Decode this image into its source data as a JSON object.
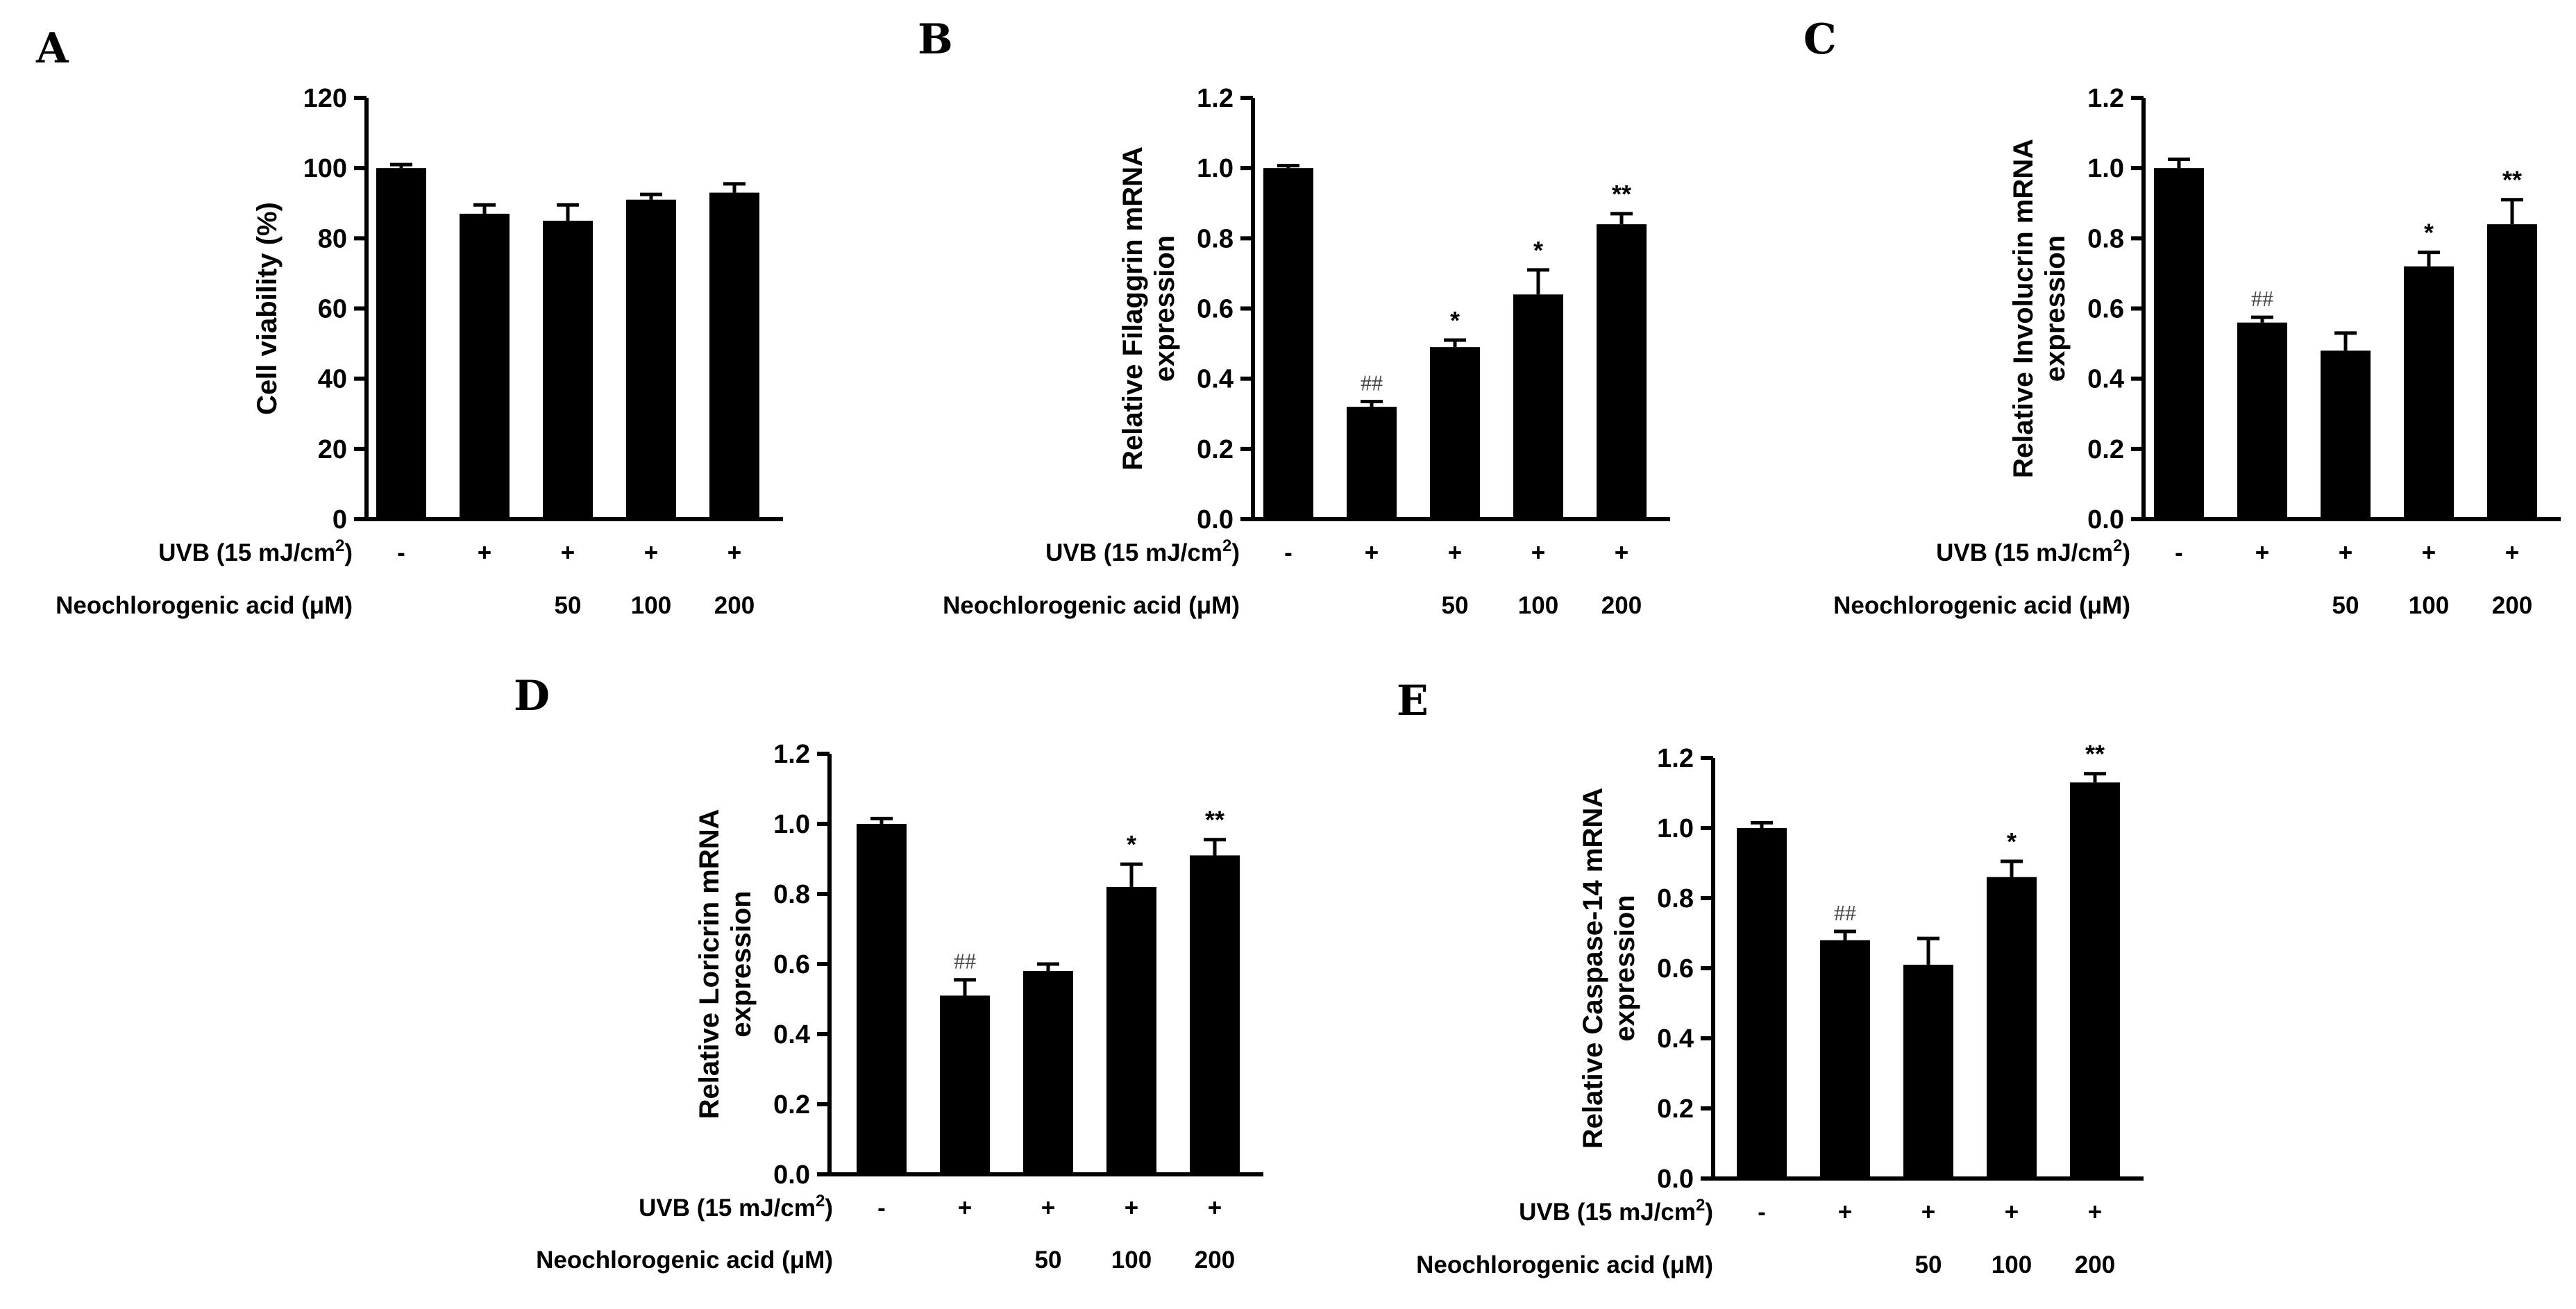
{
  "chart_data": [
    {
      "panel": "A",
      "type": "bar",
      "ylabel_lines": [
        "Cell viability (%)"
      ],
      "ylim": [
        0,
        120
      ],
      "yticks": [
        "0",
        "20",
        "40",
        "60",
        "80",
        "100",
        "120"
      ],
      "values": [
        100,
        87,
        85,
        91,
        93
      ],
      "errors": [
        1,
        2.5,
        4.5,
        1.5,
        2.5
      ],
      "signif": [
        "",
        "",
        "",
        "",
        ""
      ],
      "uvb_label": "UVB (15 mJ/cm2)",
      "uvb": [
        "-",
        "+",
        "+",
        "+",
        "+"
      ],
      "acid_label": "Neochlorogenic acid (μM)",
      "acid": [
        "",
        "",
        "50",
        "100",
        "200"
      ]
    },
    {
      "panel": "B",
      "type": "bar",
      "ylabel_lines": [
        "Relative Filaggrin mRNA",
        "expression"
      ],
      "ylim": [
        0,
        1.2
      ],
      "yticks": [
        "0.0",
        "0.2",
        "0.4",
        "0.6",
        "0.8",
        "1.0",
        "1.2"
      ],
      "values": [
        1.0,
        0.32,
        0.49,
        0.64,
        0.84
      ],
      "errors": [
        0.007,
        0.015,
        0.02,
        0.07,
        0.03
      ],
      "signif": [
        "",
        "##",
        "*",
        "*",
        "**"
      ],
      "uvb_label": "UVB (15 mJ/cm2)",
      "uvb": [
        "-",
        "+",
        "+",
        "+",
        "+"
      ],
      "acid_label": "Neochlorogenic acid (μM)",
      "acid": [
        "",
        "",
        "50",
        "100",
        "200"
      ]
    },
    {
      "panel": "C",
      "type": "bar",
      "ylabel_lines": [
        "Relative Involucrin mRNA",
        "expression"
      ],
      "ylim": [
        0,
        1.2
      ],
      "yticks": [
        "0.0",
        "0.2",
        "0.4",
        "0.6",
        "0.8",
        "1.0",
        "1.2"
      ],
      "values": [
        1.0,
        0.56,
        0.48,
        0.72,
        0.84
      ],
      "errors": [
        0.025,
        0.015,
        0.05,
        0.04,
        0.07
      ],
      "signif": [
        "",
        "##",
        "",
        "*",
        "**"
      ],
      "uvb_label": "UVB (15 mJ/cm2)",
      "uvb": [
        "-",
        "+",
        "+",
        "+",
        "+"
      ],
      "acid_label": "Neochlorogenic acid (μM)",
      "acid": [
        "",
        "",
        "50",
        "100",
        "200"
      ]
    },
    {
      "panel": "D",
      "type": "bar",
      "ylabel_lines": [
        "Relative Loricrin mRNA",
        "expression"
      ],
      "ylim": [
        0,
        1.2
      ],
      "yticks": [
        "0.0",
        "0.2",
        "0.4",
        "0.6",
        "0.8",
        "1.0",
        "1.2"
      ],
      "values": [
        1.0,
        0.51,
        0.58,
        0.82,
        0.91
      ],
      "errors": [
        0.015,
        0.045,
        0.02,
        0.065,
        0.045
      ],
      "signif": [
        "",
        "##",
        "",
        "*",
        "**"
      ],
      "uvb_label": "UVB (15 mJ/cm2)",
      "uvb": [
        "-",
        "+",
        "+",
        "+",
        "+"
      ],
      "acid_label": "Neochlorogenic acid (μM)",
      "acid": [
        "",
        "",
        "50",
        "100",
        "200"
      ]
    },
    {
      "panel": "E",
      "type": "bar",
      "ylabel_lines": [
        "Relative Caspase-14 mRNA",
        "expression"
      ],
      "ylim": [
        0,
        1.2
      ],
      "yticks": [
        "0.0",
        "0.2",
        "0.4",
        "0.6",
        "0.8",
        "1.0",
        "1.2"
      ],
      "values": [
        1.0,
        0.68,
        0.61,
        0.86,
        1.13
      ],
      "errors": [
        0.015,
        0.025,
        0.075,
        0.045,
        0.025
      ],
      "signif": [
        "",
        "##",
        "",
        "*",
        "**"
      ],
      "uvb_label": "UVB (15 mJ/cm2)",
      "uvb": [
        "-",
        "+",
        "+",
        "+",
        "+"
      ],
      "acid_label": "Neochlorogenic acid (μM)",
      "acid": [
        "",
        "",
        "50",
        "100",
        "200"
      ]
    }
  ]
}
